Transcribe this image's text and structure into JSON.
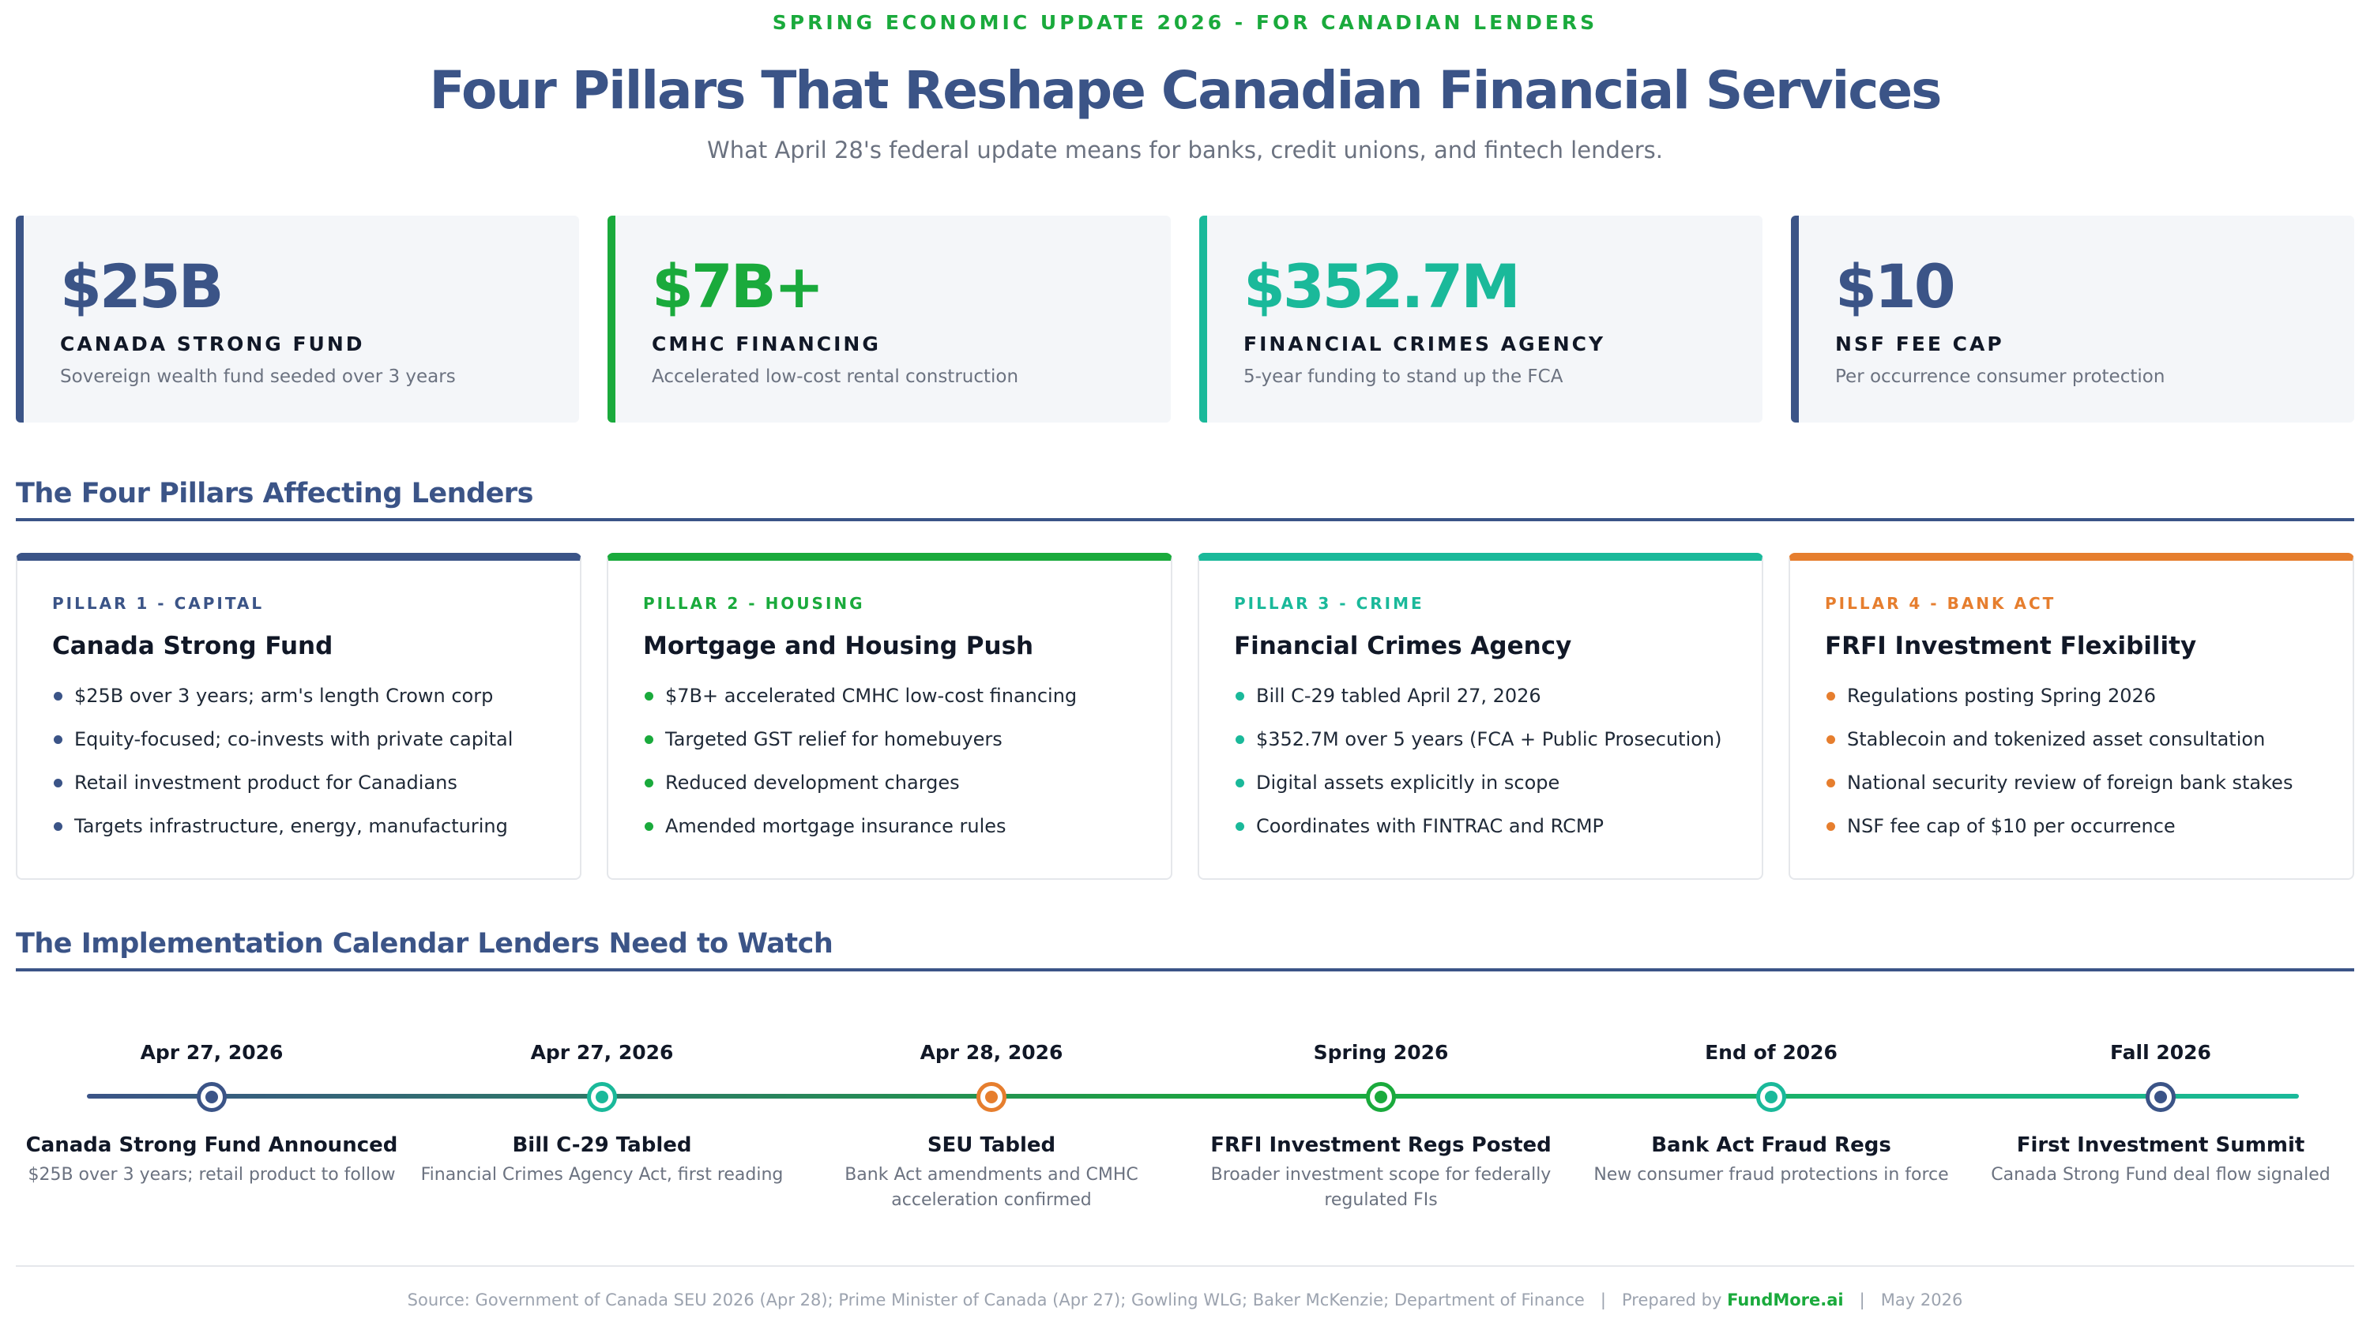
{
  "header": {
    "kicker": "SPRING ECONOMIC UPDATE 2026 - FOR CANADIAN LENDERS",
    "title": "Four Pillars That Reshape Canadian Financial Services",
    "subtitle": "What April 28's federal update means for banks, credit unions, and fintech lenders."
  },
  "colors": {
    "navy": "#3b5487",
    "green": "#1aaa3c",
    "teal": "#1ab99a",
    "orange": "#e67e2e"
  },
  "stats": [
    {
      "value": "$25B",
      "label": "CANADA STRONG FUND",
      "desc": "Sovereign wealth fund seeded over 3 years",
      "color": "#3b5487"
    },
    {
      "value": "$7B+",
      "label": "CMHC FINANCING",
      "desc": "Accelerated low-cost rental construction",
      "color": "#1aaa3c"
    },
    {
      "value": "$352.7M",
      "label": "FINANCIAL CRIMES AGENCY",
      "desc": "5-year funding to stand up the FCA",
      "color": "#1ab99a"
    },
    {
      "value": "$10",
      "label": "NSF FEE CAP",
      "desc": "Per occurrence consumer protection",
      "color": "#3b5487"
    }
  ],
  "pillars_section": {
    "title": "The Four Pillars Affecting Lenders"
  },
  "pillars": [
    {
      "tag": "PILLAR 1 - CAPITAL",
      "title": "Canada Strong Fund",
      "color": "#3b5487",
      "items": [
        "$25B over 3 years; arm's length Crown corp",
        "Equity-focused; co-invests with private capital",
        "Retail investment product for Canadians",
        "Targets infrastructure, energy, manufacturing"
      ]
    },
    {
      "tag": "PILLAR 2 - HOUSING",
      "title": "Mortgage and Housing Push",
      "color": "#1aaa3c",
      "items": [
        "$7B+ accelerated CMHC low-cost financing",
        "Targeted GST relief for homebuyers",
        "Reduced development charges",
        "Amended mortgage insurance rules"
      ]
    },
    {
      "tag": "PILLAR 3 - CRIME",
      "title": "Financial Crimes Agency",
      "color": "#1ab99a",
      "items": [
        "Bill C-29 tabled April 27, 2026",
        "$352.7M over 5 years (FCA + Public Prosecution)",
        "Digital assets explicitly in scope",
        "Coordinates with FINTRAC and RCMP"
      ]
    },
    {
      "tag": "PILLAR 4 - BANK ACT",
      "title": "FRFI Investment Flexibility",
      "color": "#e67e2e",
      "items": [
        "Regulations posting Spring 2026",
        "Stablecoin and tokenized asset consultation",
        "National security review of foreign bank stakes",
        "NSF fee cap of $10 per occurrence"
      ]
    }
  ],
  "timeline_section": {
    "title": "The Implementation Calendar Lenders Need to Watch"
  },
  "timeline": [
    {
      "date": "Apr 27, 2026",
      "event": "Canada Strong Fund Announced",
      "desc": "$25B over 3 years; retail product to follow",
      "color": "#3b5487"
    },
    {
      "date": "Apr 27, 2026",
      "event": "Bill C-29 Tabled",
      "desc": "Financial Crimes Agency Act, first reading",
      "color": "#1ab99a"
    },
    {
      "date": "Apr 28, 2026",
      "event": "SEU Tabled",
      "desc": "Bank Act amendments and CMHC acceleration confirmed",
      "color": "#e67e2e"
    },
    {
      "date": "Spring 2026",
      "event": "FRFI Investment Regs Posted",
      "desc": "Broader investment scope for federally regulated FIs",
      "color": "#1aaa3c"
    },
    {
      "date": "End of 2026",
      "event": "Bank Act Fraud Regs",
      "desc": "New consumer fraud protections in force",
      "color": "#1ab99a"
    },
    {
      "date": "Fall 2026",
      "event": "First Investment Summit",
      "desc": "Canada Strong Fund deal flow signaled",
      "color": "#3b5487"
    }
  ],
  "footer": {
    "source": "Source: Government of Canada SEU 2026 (Apr 28); Prime Minister of Canada (Apr 27); Gowling WLG; Baker McKenzie; Department of Finance",
    "separator": "|",
    "prepared": "Prepared by",
    "brand": "FundMore.ai",
    "date": "May 2026"
  }
}
